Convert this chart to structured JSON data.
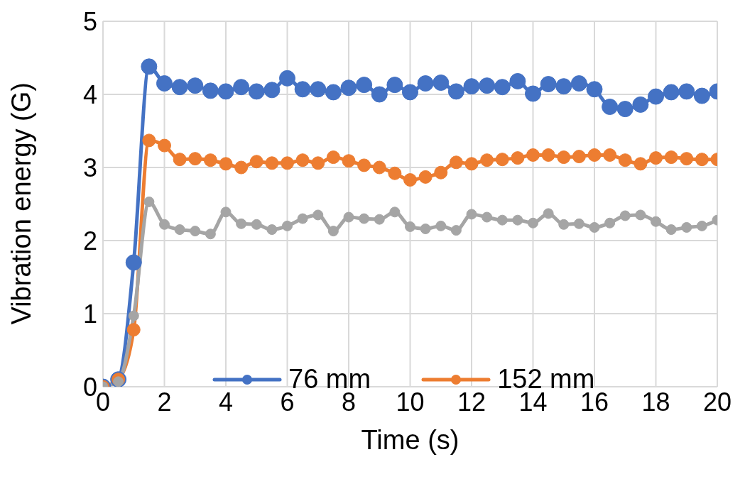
{
  "chart_data": {
    "type": "line",
    "xlabel": "Time (s)",
    "ylabel": "Vibration energy (G)",
    "x": [
      0,
      0.5,
      1,
      1.5,
      2,
      2.5,
      3,
      3.5,
      4,
      4.5,
      5,
      5.5,
      6,
      6.5,
      7,
      7.5,
      8,
      8.5,
      9,
      9.5,
      10,
      10.5,
      11,
      11.5,
      12,
      12.5,
      13,
      13.5,
      14,
      14.5,
      15,
      15.5,
      16,
      16.5,
      17,
      17.5,
      18,
      18.5,
      19,
      19.5,
      20
    ],
    "series": [
      {
        "name": "76 mm",
        "color": "#4472c4",
        "values": [
          0,
          0.1,
          1.7,
          4.38,
          4.15,
          4.1,
          4.12,
          4.05,
          4.04,
          4.1,
          4.04,
          4.06,
          4.22,
          4.07,
          4.07,
          4.03,
          4.09,
          4.13,
          4.0,
          4.13,
          4.03,
          4.15,
          4.16,
          4.04,
          4.11,
          4.12,
          4.1,
          4.18,
          4.01,
          4.14,
          4.11,
          4.15,
          4.07,
          3.83,
          3.8,
          3.86,
          3.97,
          4.03,
          4.04,
          3.98,
          4.04
        ]
      },
      {
        "name": "152 mm",
        "color": "#ed7d31",
        "values": [
          0,
          0.1,
          0.78,
          3.37,
          3.3,
          3.11,
          3.12,
          3.1,
          3.05,
          3.0,
          3.08,
          3.06,
          3.06,
          3.1,
          3.06,
          3.14,
          3.09,
          3.03,
          3.0,
          2.92,
          2.83,
          2.87,
          2.93,
          3.07,
          3.05,
          3.1,
          3.11,
          3.13,
          3.17,
          3.17,
          3.14,
          3.15,
          3.17,
          3.17,
          3.1,
          3.05,
          3.13,
          3.14,
          3.12,
          3.11,
          3.11
        ]
      },
      {
        "color": "#a5a5a5",
        "values": [
          0,
          0.07,
          0.97,
          2.53,
          2.22,
          2.15,
          2.13,
          2.09,
          2.39,
          2.23,
          2.22,
          2.15,
          2.2,
          2.3,
          2.35,
          2.13,
          2.32,
          2.3,
          2.29,
          2.39,
          2.19,
          2.16,
          2.2,
          2.14,
          2.36,
          2.32,
          2.28,
          2.28,
          2.24,
          2.37,
          2.22,
          2.23,
          2.18,
          2.24,
          2.34,
          2.35,
          2.26,
          2.15,
          2.18,
          2.2,
          2.28
        ]
      }
    ],
    "xlim": [
      0,
      20
    ],
    "xticks": [
      0,
      2,
      4,
      6,
      8,
      10,
      12,
      14,
      16,
      18,
      20
    ],
    "ylim": [
      0,
      5
    ],
    "yticks": [
      0,
      1,
      2,
      3,
      4,
      5
    ],
    "grid": true,
    "legend": "bottom",
    "marker": "circle",
    "line_style": "solid"
  }
}
